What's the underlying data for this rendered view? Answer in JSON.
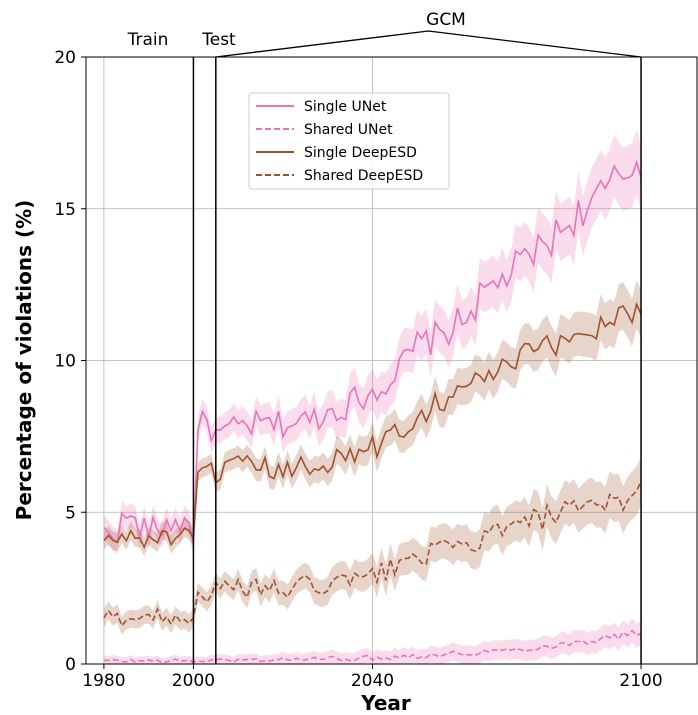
{
  "chart_data": {
    "type": "line",
    "title": "",
    "xlabel": "Year",
    "ylabel": "Percentage of violations (%)",
    "xlim": [
      1976,
      2112.5
    ],
    "ylim": [
      0,
      20
    ],
    "xticks": [
      1980,
      2000,
      2040,
      2100
    ],
    "yticks": [
      0,
      5,
      10,
      15,
      20
    ],
    "grid": true,
    "legend_position": "upper-center",
    "period_markers": {
      "train_label": "Train",
      "test_label": "Test",
      "gcm_label": "GCM",
      "train_end": 2000,
      "test_end": 2005,
      "gcm_end": 2100
    },
    "anchors": {
      "single_unet": [
        [
          1980,
          4.3
        ],
        [
          1983,
          4.4
        ],
        [
          1985,
          4.9
        ],
        [
          1987,
          4.6
        ],
        [
          1990,
          4.4
        ],
        [
          1993,
          4.5
        ],
        [
          1996,
          4.7
        ],
        [
          1999,
          4.6
        ],
        [
          2000,
          4.3
        ],
        [
          2001,
          7.8
        ],
        [
          2003,
          8.0
        ],
        [
          2005,
          7.5
        ],
        [
          2010,
          7.8
        ],
        [
          2015,
          7.9
        ],
        [
          2020,
          7.9
        ],
        [
          2025,
          8.0
        ],
        [
          2030,
          8.3
        ],
        [
          2035,
          8.6
        ],
        [
          2040,
          9.0
        ],
        [
          2045,
          9.5
        ],
        [
          2050,
          10.5
        ],
        [
          2055,
          10.8
        ],
        [
          2060,
          11.3
        ],
        [
          2065,
          12.2
        ],
        [
          2070,
          12.8
        ],
        [
          2075,
          13.4
        ],
        [
          2080,
          14.0
        ],
        [
          2085,
          14.7
        ],
        [
          2090,
          15.3
        ],
        [
          2095,
          16.0
        ],
        [
          2100,
          16.6
        ]
      ],
      "shared_unet": [
        [
          1980,
          0.1
        ],
        [
          2000,
          0.1
        ],
        [
          2020,
          0.15
        ],
        [
          2040,
          0.2
        ],
        [
          2060,
          0.35
        ],
        [
          2070,
          0.45
        ],
        [
          2080,
          0.6
        ],
        [
          2090,
          0.8
        ],
        [
          2100,
          1.05
        ]
      ],
      "single_deepesd": [
        [
          1980,
          4.0
        ],
        [
          1985,
          4.2
        ],
        [
          1990,
          4.1
        ],
        [
          1995,
          4.2
        ],
        [
          2000,
          4.1
        ],
        [
          2001,
          6.0
        ],
        [
          2003,
          6.4
        ],
        [
          2005,
          6.3
        ],
        [
          2010,
          6.5
        ],
        [
          2015,
          6.5
        ],
        [
          2020,
          6.3
        ],
        [
          2025,
          6.5
        ],
        [
          2030,
          6.7
        ],
        [
          2035,
          6.9
        ],
        [
          2040,
          7.1
        ],
        [
          2045,
          7.6
        ],
        [
          2050,
          8.2
        ],
        [
          2055,
          8.7
        ],
        [
          2060,
          9.0
        ],
        [
          2065,
          9.5
        ],
        [
          2070,
          9.8
        ],
        [
          2075,
          10.2
        ],
        [
          2080,
          10.5
        ],
        [
          2085,
          10.8
        ],
        [
          2090,
          11.1
        ],
        [
          2095,
          11.5
        ],
        [
          2100,
          11.8
        ]
      ],
      "shared_deepesd": [
        [
          1980,
          1.5
        ],
        [
          1985,
          1.55
        ],
        [
          1990,
          1.55
        ],
        [
          1995,
          1.6
        ],
        [
          2000,
          1.55
        ],
        [
          2001,
          2.2
        ],
        [
          2005,
          2.4
        ],
        [
          2010,
          2.5
        ],
        [
          2015,
          2.5
        ],
        [
          2020,
          2.4
        ],
        [
          2025,
          2.6
        ],
        [
          2030,
          2.6
        ],
        [
          2035,
          2.7
        ],
        [
          2040,
          2.9
        ],
        [
          2045,
          3.2
        ],
        [
          2050,
          3.6
        ],
        [
          2055,
          3.7
        ],
        [
          2060,
          3.8
        ],
        [
          2065,
          4.2
        ],
        [
          2070,
          4.4
        ],
        [
          2075,
          4.7
        ],
        [
          2080,
          4.9
        ],
        [
          2085,
          5.0
        ],
        [
          2090,
          5.1
        ],
        [
          2095,
          5.4
        ],
        [
          2100,
          5.7
        ]
      ]
    },
    "series": [
      {
        "name": "Single UNet",
        "color": "#ea72b8",
        "dash": "solid",
        "band_width": 0.4,
        "noise": 0.42,
        "noise_growth": 0.5
      },
      {
        "name": "Shared UNet",
        "color": "#ea72b8",
        "dash": "dashed",
        "band_width": 0.15,
        "noise": 0.06,
        "noise_growth": 1.0
      },
      {
        "name": "Single DeepESD",
        "color": "#a0522d",
        "dash": "solid",
        "band_width": 0.3,
        "noise": 0.35,
        "noise_growth": 0.5
      },
      {
        "name": "Shared DeepESD",
        "color": "#a0522d",
        "dash": "dashed",
        "band_width": 0.3,
        "noise": 0.3,
        "noise_growth": 0.4
      }
    ]
  }
}
